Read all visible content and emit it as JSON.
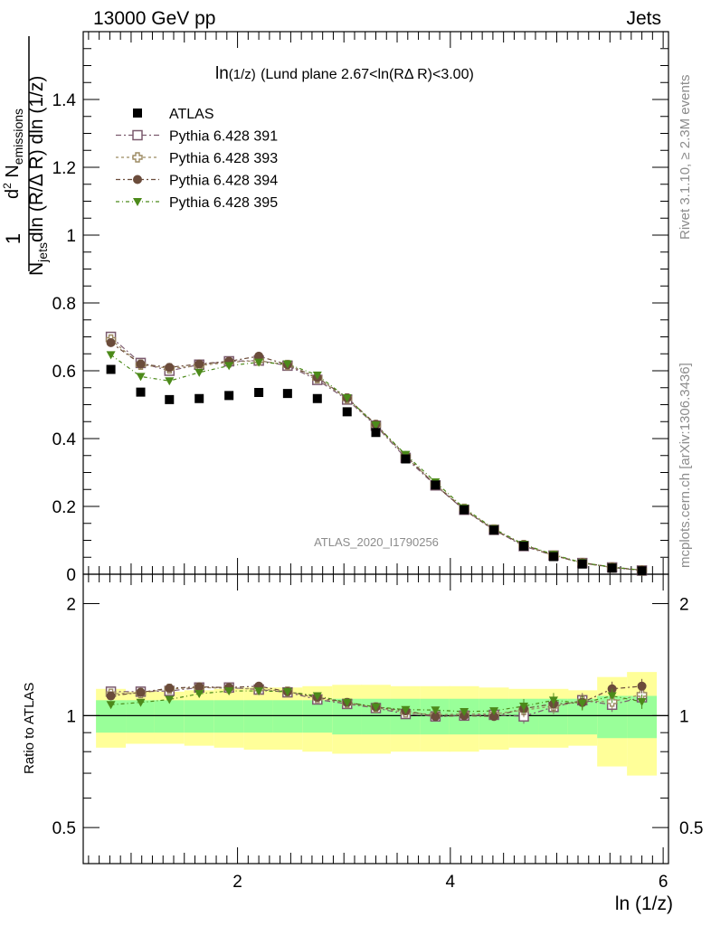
{
  "header": {
    "left": "13000 GeV pp",
    "right": "Jets"
  },
  "side_labels": {
    "rivet": "Rivet 3.1.10, ≥ 2.3M events",
    "mcplots": "mcplots.cern.ch [arXiv:1306.3436]"
  },
  "chart_data": {
    "type": "scatter",
    "title_main": "ln",
    "title_sub": "(1/z)",
    "title_rest": "(Lund plane 2.67<ln(RΔ R)<3.00)",
    "watermark": "ATLAS_2020_I1790256",
    "xlabel": "ln (1/z)",
    "ylabel": "1/N_jets d²N_emissions/dln(R/ΔR) dln(1/z)",
    "ratio_ylabel": "Ratio to ATLAS",
    "xlim": [
      0.55,
      6.05
    ],
    "ylim": [
      0,
      1.6
    ],
    "ratio_ylim": [
      0.4,
      2.4
    ],
    "ratio_log": true,
    "x_ticks": [
      "2",
      "4",
      "6"
    ],
    "y_ticks": [
      "0",
      "0.2",
      "0.4",
      "0.6",
      "0.8",
      "1",
      "1.2",
      "1.4"
    ],
    "ratio_ticks": [
      "0.5",
      "1",
      "2"
    ],
    "x": [
      0.81,
      1.09,
      1.36,
      1.64,
      1.92,
      2.2,
      2.47,
      2.75,
      3.03,
      3.3,
      3.58,
      3.86,
      4.13,
      4.41,
      4.69,
      4.97,
      5.24,
      5.52,
      5.8
    ],
    "data": {
      "name": "ATLAS",
      "values": [
        0.604,
        0.537,
        0.515,
        0.518,
        0.527,
        0.536,
        0.533,
        0.518,
        0.479,
        0.418,
        0.34,
        0.263,
        0.19,
        0.13,
        0.083,
        0.052,
        0.03,
        0.018,
        0.01
      ],
      "ratio_band_inner": [
        0.1,
        0.1,
        0.1,
        0.1,
        0.1,
        0.1,
        0.1,
        0.1,
        0.11,
        0.11,
        0.11,
        0.11,
        0.11,
        0.11,
        0.11,
        0.11,
        0.11,
        0.13,
        0.13
      ],
      "ratio_band_outer": [
        0.18,
        0.16,
        0.16,
        0.17,
        0.18,
        0.19,
        0.19,
        0.2,
        0.21,
        0.21,
        0.2,
        0.2,
        0.2,
        0.19,
        0.18,
        0.18,
        0.17,
        0.27,
        0.31
      ],
      "color": "#000000"
    },
    "series": [
      {
        "name": "Pythia 6.428 391",
        "marker": "open-square",
        "color": "#7b5a6e",
        "values": [
          0.7,
          0.623,
          0.6,
          0.618,
          0.628,
          0.63,
          0.615,
          0.573,
          0.515,
          0.438,
          0.343,
          0.262,
          0.19,
          0.131,
          0.083,
          0.055,
          0.033,
          0.02,
          0.011
        ],
        "ratio": [
          1.16,
          1.16,
          1.165,
          1.19,
          1.19,
          1.175,
          1.155,
          1.105,
          1.075,
          1.048,
          1.01,
          0.995,
          1.0,
          1.005,
          0.995,
          1.055,
          1.1,
          1.07,
          1.12
        ]
      },
      {
        "name": "Pythia 6.428 393",
        "marker": "open-cross",
        "color": "#9c8a62",
        "values": [
          0.692,
          0.618,
          0.607,
          0.615,
          0.625,
          0.63,
          0.617,
          0.578,
          0.518,
          0.44,
          0.347,
          0.265,
          0.193,
          0.132,
          0.086,
          0.055,
          0.033,
          0.02,
          0.011
        ],
        "ratio": [
          1.145,
          1.15,
          1.18,
          1.19,
          1.185,
          1.18,
          1.16,
          1.115,
          1.08,
          1.052,
          1.02,
          1.005,
          1.01,
          1.01,
          1.035,
          1.06,
          1.095,
          1.09,
          1.14
        ]
      },
      {
        "name": "Pythia 6.428 394",
        "marker": "filled-circle",
        "color": "#6b4c3b",
        "values": [
          0.683,
          0.62,
          0.61,
          0.62,
          0.628,
          0.643,
          0.618,
          0.58,
          0.52,
          0.442,
          0.35,
          0.263,
          0.19,
          0.13,
          0.087,
          0.056,
          0.034,
          0.021,
          0.012
        ],
        "ratio": [
          1.13,
          1.155,
          1.185,
          1.195,
          1.19,
          1.2,
          1.16,
          1.12,
          1.085,
          1.055,
          1.03,
          0.995,
          1.0,
          0.995,
          1.045,
          1.075,
          1.085,
          1.18,
          1.2
        ]
      },
      {
        "name": "Pythia 6.428 395",
        "marker": "filled-triangle-down",
        "color": "#4c8a1a",
        "values": [
          0.647,
          0.583,
          0.57,
          0.595,
          0.615,
          0.625,
          0.62,
          0.587,
          0.52,
          0.44,
          0.353,
          0.272,
          0.195,
          0.134,
          0.088,
          0.058,
          0.034,
          0.021,
          0.012
        ],
        "ratio": [
          1.07,
          1.085,
          1.105,
          1.145,
          1.165,
          1.165,
          1.16,
          1.13,
          1.085,
          1.055,
          1.038,
          1.035,
          1.025,
          1.03,
          1.06,
          1.1,
          1.08,
          1.13,
          1.09
        ]
      }
    ],
    "band_colors": {
      "inner": "#99ff99",
      "outer": "#ffff99"
    },
    "grid": false,
    "legend_position": "top-left"
  }
}
